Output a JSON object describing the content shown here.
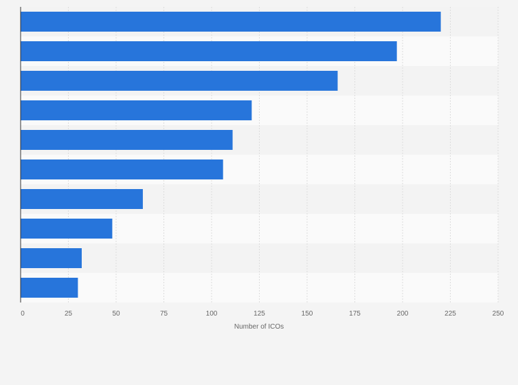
{
  "chart_data": {
    "type": "bar",
    "orientation": "horizontal",
    "title": "",
    "xlabel": "Number of ICOs",
    "ylabel": "",
    "categories": [
      "",
      "",
      "",
      "",
      "",
      "",
      "",
      "",
      "",
      ""
    ],
    "values": [
      220,
      197,
      166,
      121,
      111,
      106,
      64,
      48,
      32,
      30
    ],
    "xlim": [
      0,
      250
    ],
    "xticks": [
      0,
      25,
      50,
      75,
      100,
      125,
      150,
      175,
      200,
      225,
      250
    ],
    "grid": true,
    "bar_color": "#2775db"
  }
}
